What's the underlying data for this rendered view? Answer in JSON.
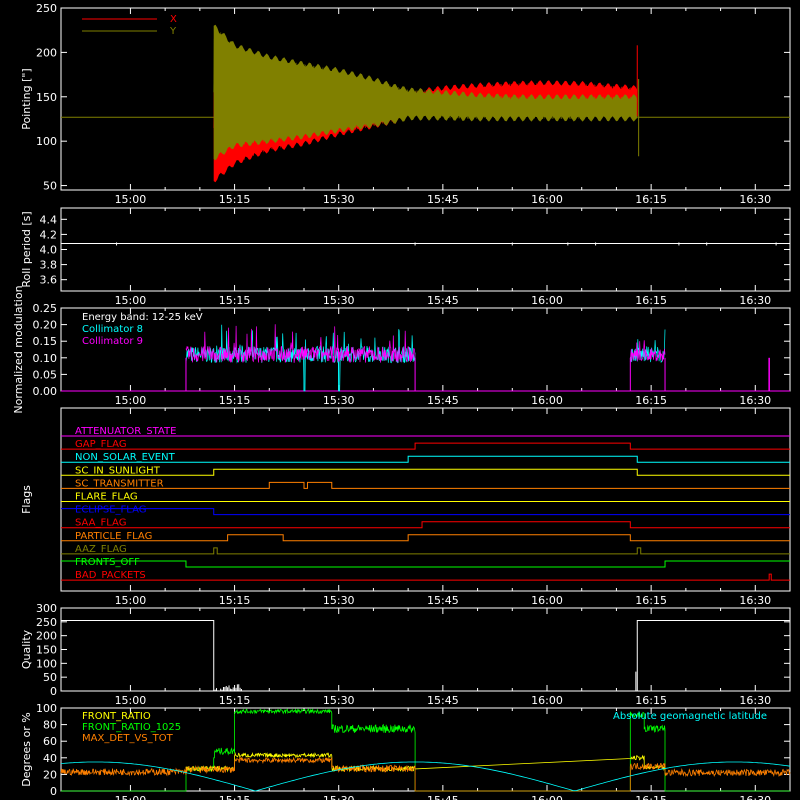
{
  "x_tick_labels": [
    "15:00",
    "15:15",
    "15:30",
    "15:45",
    "16:00",
    "16:15",
    "16:30"
  ],
  "chart_data": [
    {
      "type": "line",
      "ylabel": "Pointing [\"]",
      "ylim": [
        45,
        250
      ],
      "y_tick_labels": [
        "50",
        "100",
        "150",
        "200",
        "250"
      ],
      "baseline": 127,
      "series": [
        {
          "name": "X",
          "color": "#ff0000"
        },
        {
          "name": "Y",
          "color": "#808000"
        }
      ],
      "envelope_minutes": [
        12,
        15,
        20,
        25,
        30,
        35,
        38,
        40,
        45,
        50,
        55,
        60,
        65,
        73
      ],
      "x_upper": [
        175,
        165,
        160,
        153,
        150,
        147,
        150,
        155,
        160,
        163,
        165,
        166,
        165,
        160
      ],
      "x_lower": [
        55,
        75,
        90,
        97,
        108,
        117,
        122,
        127,
        130,
        135,
        140,
        142,
        143,
        145
      ],
      "y_upper": [
        230,
        208,
        195,
        187,
        180,
        170,
        162,
        158,
        155,
        152,
        150,
        150,
        150,
        150
      ],
      "y_lower": [
        80,
        95,
        100,
        105,
        112,
        118,
        122,
        126,
        126,
        125,
        125,
        125,
        125,
        125
      ]
    },
    {
      "type": "line",
      "ylabel": "Roll period [s]",
      "ylim": [
        3.45,
        4.55
      ],
      "y_tick_labels": [
        "3.6",
        "3.8",
        "4.0",
        "4.2",
        "4.4"
      ],
      "series": [
        {
          "values_const": 4.08,
          "color": "#ffffff"
        }
      ]
    },
    {
      "type": "line",
      "ylabel": "Normalized modulation",
      "ylim": [
        0,
        0.25
      ],
      "y_tick_labels": [
        "0.00",
        "0.05",
        "0.10",
        "0.15",
        "0.20",
        "0.25"
      ],
      "annotation": "Energy band: 12-25 keV",
      "series": [
        {
          "name": "Collimator 8",
          "color": "#00ffff"
        },
        {
          "name": "Collimator 9",
          "color": "#ff00ff"
        }
      ]
    },
    {
      "type": "line",
      "ylabel": "Flags",
      "flags": [
        {
          "name": "ATTENUATOR_STATE",
          "color": "#ff00ff",
          "steps": [
            [
              0,
              0
            ]
          ]
        },
        {
          "name": "GAP_FLAG",
          "color": "#ff0000",
          "steps": [
            [
              0,
              0
            ],
            [
              41,
              1
            ],
            [
              72,
              0
            ]
          ]
        },
        {
          "name": "NON_SOLAR_EVENT",
          "color": "#00ffff",
          "steps": [
            [
              0,
              0
            ],
            [
              40,
              1
            ],
            [
              73,
              0
            ]
          ]
        },
        {
          "name": "SC_IN_SUNLIGHT",
          "color": "#ffff00",
          "steps": [
            [
              0,
              0
            ],
            [
              12,
              1
            ],
            [
              73,
              0
            ]
          ]
        },
        {
          "name": "SC_TRANSMITTER",
          "color": "#ff8000",
          "steps": [
            [
              0,
              0
            ],
            [
              20,
              1
            ],
            [
              25,
              0
            ],
            [
              25.5,
              1
            ],
            [
              29,
              0
            ]
          ]
        },
        {
          "name": "FLARE_FLAG",
          "color": "#ffff00",
          "steps": [
            [
              0,
              0
            ]
          ]
        },
        {
          "name": "ECLIPSE_FLAG",
          "color": "#0000ff",
          "steps": [
            [
              0,
              1
            ],
            [
              12,
              0
            ]
          ]
        },
        {
          "name": "SAA_FLAG",
          "color": "#ff0000",
          "steps": [
            [
              0,
              0
            ],
            [
              42,
              1
            ],
            [
              72,
              0
            ]
          ]
        },
        {
          "name": "PARTICLE_FLAG",
          "color": "#ff8000",
          "steps": [
            [
              0,
              0
            ],
            [
              14,
              1
            ],
            [
              22,
              0
            ],
            [
              40,
              1
            ],
            [
              72,
              0
            ]
          ]
        },
        {
          "name": "AAZ_FLAG",
          "color": "#808000",
          "steps": [
            [
              0,
              0
            ],
            [
              12,
              1
            ],
            [
              12.5,
              0
            ],
            [
              73,
              1
            ],
            [
              73.5,
              0
            ]
          ]
        },
        {
          "name": "FRONTS_OFF",
          "color": "#00ff00",
          "steps": [
            [
              0,
              1
            ],
            [
              8,
              0
            ],
            [
              77,
              1
            ]
          ]
        },
        {
          "name": "BAD_PACKETS",
          "color": "#ff0000",
          "steps": [
            [
              0,
              0
            ],
            [
              92,
              1
            ],
            [
              92.3,
              0
            ]
          ]
        }
      ]
    },
    {
      "type": "line",
      "ylabel": "Quality",
      "ylim": [
        0,
        300
      ],
      "y_tick_labels": [
        "0",
        "50",
        "100",
        "150",
        "200",
        "250",
        "300"
      ],
      "series": [
        {
          "color": "#ffffff",
          "steps": [
            [
              0,
              255
            ],
            [
              12,
              0
            ],
            [
              73,
              255
            ]
          ]
        }
      ]
    },
    {
      "type": "line",
      "ylabel": "Degrees or %",
      "ylim": [
        0,
        100
      ],
      "y_tick_labels": [
        "0",
        "20",
        "40",
        "60",
        "80",
        "100"
      ],
      "annotation": "Absolute geomagnetic latitude",
      "series": [
        {
          "name": "FRONT_RATIO",
          "color": "#ffff00"
        },
        {
          "name": "FRONT_RATIO_1025",
          "color": "#00ff00"
        },
        {
          "name": "MAX_DET_VS_TOT",
          "color": "#ff8000"
        },
        {
          "name": "Absolute geomagnetic latitude",
          "color": "#00ffff"
        }
      ]
    }
  ]
}
